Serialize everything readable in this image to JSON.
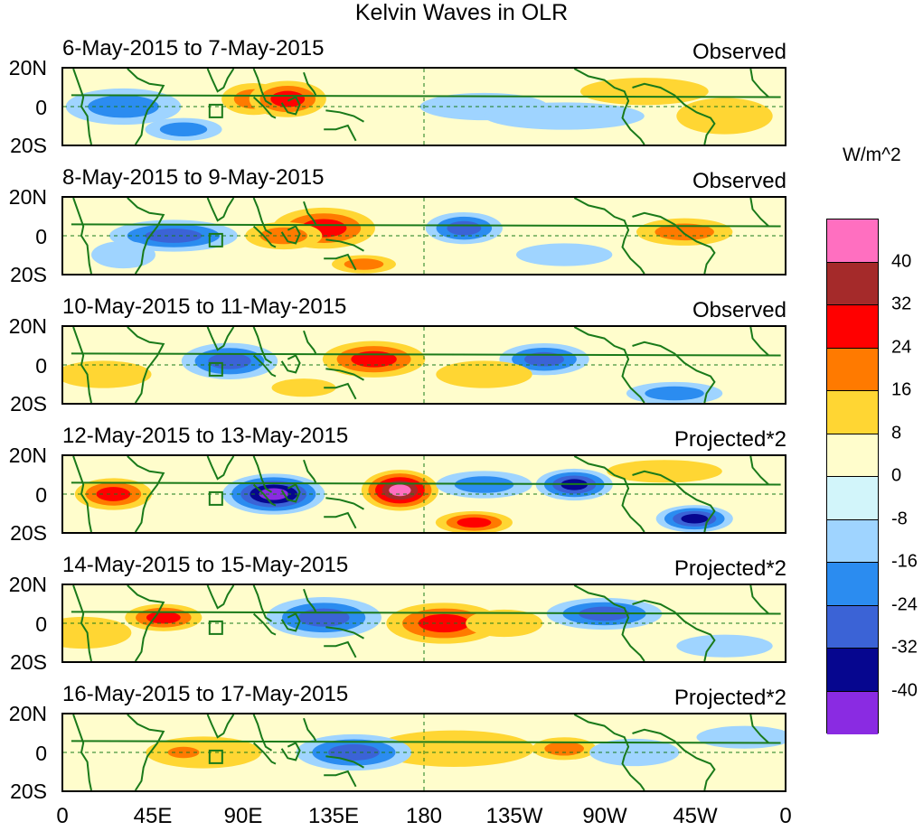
{
  "title": "Kelvin Waves in OLR",
  "colorbar": {
    "unit": "W/m^2",
    "colors": [
      "#ff6fc0",
      "#a52a2a",
      "#ff0000",
      "#ff7a00",
      "#ffd633",
      "#fffdcc",
      "#d2f5fa",
      "#9fd4ff",
      "#2b8cf0",
      "#3b63d6",
      "#06068f",
      "#8a2be2"
    ],
    "labels": [
      "40",
      "32",
      "24",
      "16",
      "8",
      "0",
      "-8",
      "-16",
      "-24",
      "-32",
      "-40"
    ]
  },
  "lat_labels": [
    "20N",
    "0",
    "20S"
  ],
  "lon_labels": [
    "0",
    "45E",
    "90E",
    "135E",
    "180",
    "135W",
    "90W",
    "45W",
    "0"
  ],
  "panels": [
    {
      "date": "6-May-2015 to 7-May-2015",
      "status": "Observed",
      "blobs": [
        {
          "lon": 95,
          "lat": 4,
          "rx": 10,
          "ry": 7,
          "v": 16
        },
        {
          "lon": 112,
          "lat": 4,
          "rx": 12,
          "ry": 8,
          "v": 24
        },
        {
          "lon": 30,
          "lat": 0,
          "rx": 18,
          "ry": 8,
          "v": -16
        },
        {
          "lon": 60,
          "lat": -12,
          "rx": 12,
          "ry": 5,
          "v": -16
        },
        {
          "lon": -150,
          "lat": 0,
          "rx": 20,
          "ry": 6,
          "v": -8
        },
        {
          "lon": -70,
          "lat": 8,
          "rx": 20,
          "ry": 6,
          "v": 8
        },
        {
          "lon": -30,
          "lat": -5,
          "rx": 15,
          "ry": 8,
          "v": 8
        },
        {
          "lon": -110,
          "lat": -5,
          "rx": 25,
          "ry": 6,
          "v": -8
        }
      ]
    },
    {
      "date": "8-May-2015 to 9-May-2015",
      "status": "Observed",
      "blobs": [
        {
          "lon": 130,
          "lat": 4,
          "rx": 16,
          "ry": 9,
          "v": 24
        },
        {
          "lon": 110,
          "lat": 0,
          "rx": 12,
          "ry": 6,
          "v": 16
        },
        {
          "lon": 55,
          "lat": 0,
          "rx": 20,
          "ry": 7,
          "v": -24
        },
        {
          "lon": -160,
          "lat": 4,
          "rx": 12,
          "ry": 7,
          "v": -24
        },
        {
          "lon": -50,
          "lat": 2,
          "rx": 15,
          "ry": 6,
          "v": 16
        },
        {
          "lon": 150,
          "lat": -15,
          "rx": 10,
          "ry": 4,
          "v": 16
        },
        {
          "lon": -110,
          "lat": -10,
          "rx": 15,
          "ry": 5,
          "v": -8
        },
        {
          "lon": 30,
          "lat": -10,
          "rx": 10,
          "ry": 6,
          "v": -8
        }
      ]
    },
    {
      "date": "10-May-2015 to 11-May-2015",
      "status": "Observed",
      "blobs": [
        {
          "lon": 155,
          "lat": 3,
          "rx": 16,
          "ry": 8,
          "v": 24
        },
        {
          "lon": 83,
          "lat": 2,
          "rx": 15,
          "ry": 8,
          "v": -24
        },
        {
          "lon": -120,
          "lat": 3,
          "rx": 14,
          "ry": 7,
          "v": -24
        },
        {
          "lon": -150,
          "lat": -5,
          "rx": 15,
          "ry": 6,
          "v": 8
        },
        {
          "lon": -55,
          "lat": -15,
          "rx": 15,
          "ry": 5,
          "v": -16
        },
        {
          "lon": 20,
          "lat": -5,
          "rx": 15,
          "ry": 6,
          "v": 8
        },
        {
          "lon": 120,
          "lat": -12,
          "rx": 10,
          "ry": 4,
          "v": 8
        }
      ]
    },
    {
      "date": "12-May-2015 to 13-May-2015",
      "status": "Projected*2",
      "blobs": [
        {
          "lon": 168,
          "lat": 2,
          "rx": 12,
          "ry": 9,
          "v": 40
        },
        {
          "lon": 105,
          "lat": 0,
          "rx": 16,
          "ry": 9,
          "v": -40
        },
        {
          "lon": -105,
          "lat": 5,
          "rx": 12,
          "ry": 7,
          "v": -32
        },
        {
          "lon": -45,
          "lat": -13,
          "rx": 12,
          "ry": 6,
          "v": -32
        },
        {
          "lon": 25,
          "lat": 0,
          "rx": 12,
          "ry": 7,
          "v": 24
        },
        {
          "lon": -155,
          "lat": -15,
          "rx": 12,
          "ry": 5,
          "v": 24
        },
        {
          "lon": -150,
          "lat": 5,
          "rx": 15,
          "ry": 6,
          "v": -16
        },
        {
          "lon": -60,
          "lat": 12,
          "rx": 18,
          "ry": 5,
          "v": 8
        }
      ]
    },
    {
      "date": "14-May-2015 to 15-May-2015",
      "status": "Projected*2",
      "blobs": [
        {
          "lon": -170,
          "lat": 0,
          "rx": 18,
          "ry": 9,
          "v": 24
        },
        {
          "lon": 130,
          "lat": 3,
          "rx": 18,
          "ry": 9,
          "v": -24
        },
        {
          "lon": 50,
          "lat": 3,
          "rx": 12,
          "ry": 6,
          "v": 24
        },
        {
          "lon": -90,
          "lat": 5,
          "rx": 18,
          "ry": 7,
          "v": -24
        },
        {
          "lon": -140,
          "lat": 0,
          "rx": 12,
          "ry": 6,
          "v": 8
        },
        {
          "lon": 10,
          "lat": -5,
          "rx": 15,
          "ry": 7,
          "v": 8
        },
        {
          "lon": -30,
          "lat": -12,
          "rx": 15,
          "ry": 5,
          "v": -8
        }
      ]
    },
    {
      "date": "16-May-2015 to 17-May-2015",
      "status": "Projected*2",
      "blobs": [
        {
          "lon": -165,
          "lat": 2,
          "rx": 25,
          "ry": 8,
          "v": 8
        },
        {
          "lon": -110,
          "lat": 2,
          "rx": 10,
          "ry": 5,
          "v": 16
        },
        {
          "lon": 145,
          "lat": 0,
          "rx": 18,
          "ry": 8,
          "v": -24
        },
        {
          "lon": 70,
          "lat": 0,
          "rx": 18,
          "ry": 7,
          "v": 8
        },
        {
          "lon": 60,
          "lat": 0,
          "rx": 8,
          "ry": 4,
          "v": 16
        },
        {
          "lon": -75,
          "lat": 0,
          "rx": 14,
          "ry": 6,
          "v": -8
        },
        {
          "lon": -20,
          "lat": 8,
          "rx": 15,
          "ry": 5,
          "v": -8
        }
      ]
    }
  ]
}
